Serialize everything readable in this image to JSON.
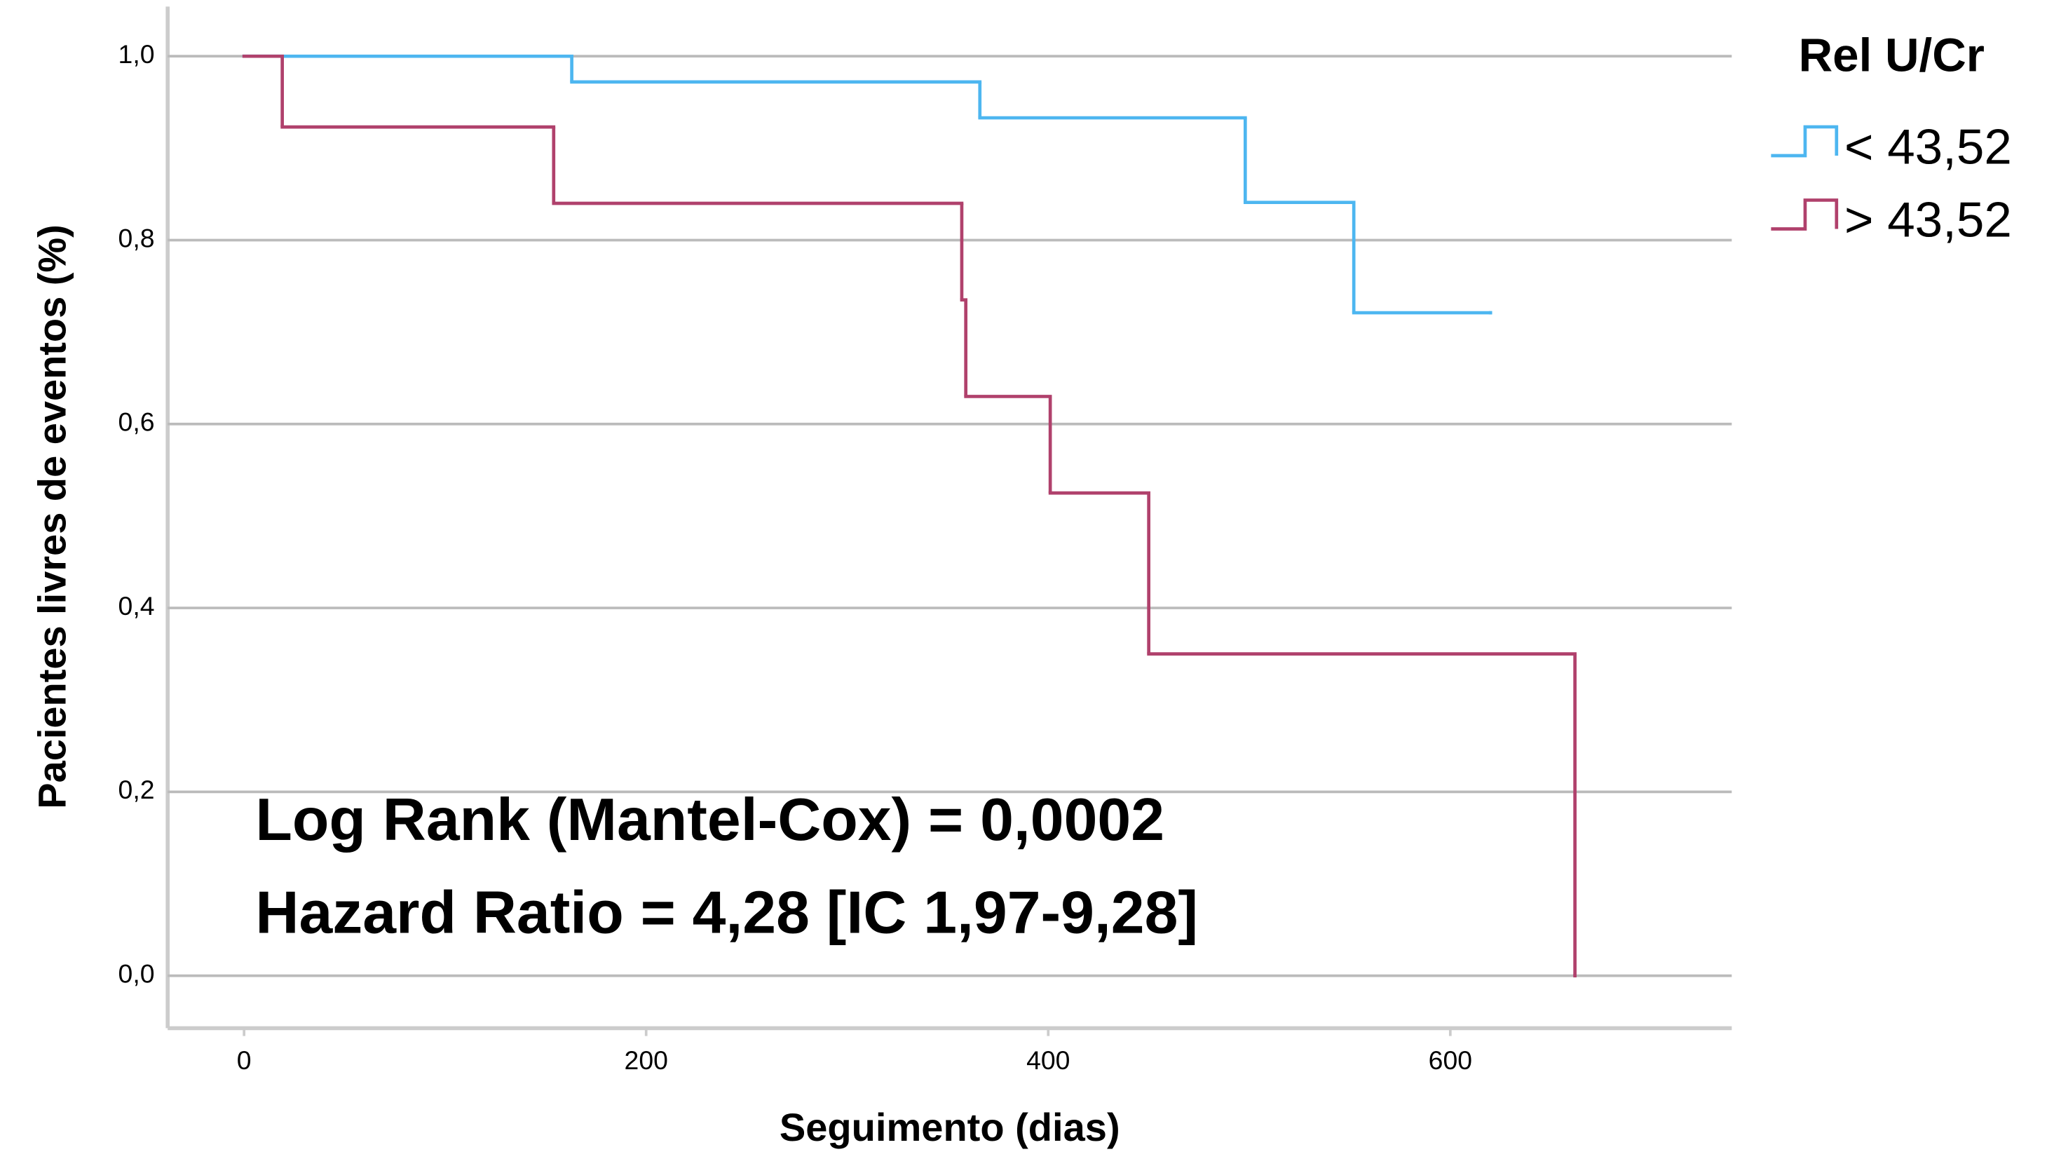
{
  "chart_data": {
    "type": "step",
    "x_label": "Seguimento (dias)",
    "y_label": "Pacientes livres de eventos (%)",
    "legend_title": "Rel U/Cr",
    "legend": "right",
    "grid": true,
    "annotations": [
      "Log Rank (Mantel-Cox) = 0,0002",
      "Hazard Ratio = 4,28 [IC 1,97-9,28]"
    ],
    "xlim": [
      -38,
      740
    ],
    "ylim": [
      -0.057,
      1.054
    ],
    "xticks": [
      0,
      200,
      400,
      600
    ],
    "yticks": [
      {
        "value": 0,
        "label": "0,0"
      },
      {
        "value": 0.2,
        "label": "0,2"
      },
      {
        "value": 0.4,
        "label": "0,4"
      },
      {
        "value": 0.6,
        "label": "0,6"
      },
      {
        "value": 0.8,
        "label": "0,8"
      },
      {
        "value": 1,
        "label": "1,0"
      }
    ],
    "series": [
      {
        "name": "< 43,52",
        "color": "#4db6f0",
        "x": [
          0,
          163,
          366,
          498,
          552,
          620
        ],
        "values": [
          1,
          0.972,
          0.933,
          0.841,
          0.721,
          0.721
        ]
      },
      {
        "name": "> 43,52",
        "color": "#b0416c",
        "x": [
          0,
          19,
          154,
          357,
          359,
          401,
          450,
          662
        ],
        "values": [
          1,
          0.923,
          0.84,
          0.735,
          0.63,
          0.525,
          0.35,
          0
        ]
      }
    ]
  }
}
